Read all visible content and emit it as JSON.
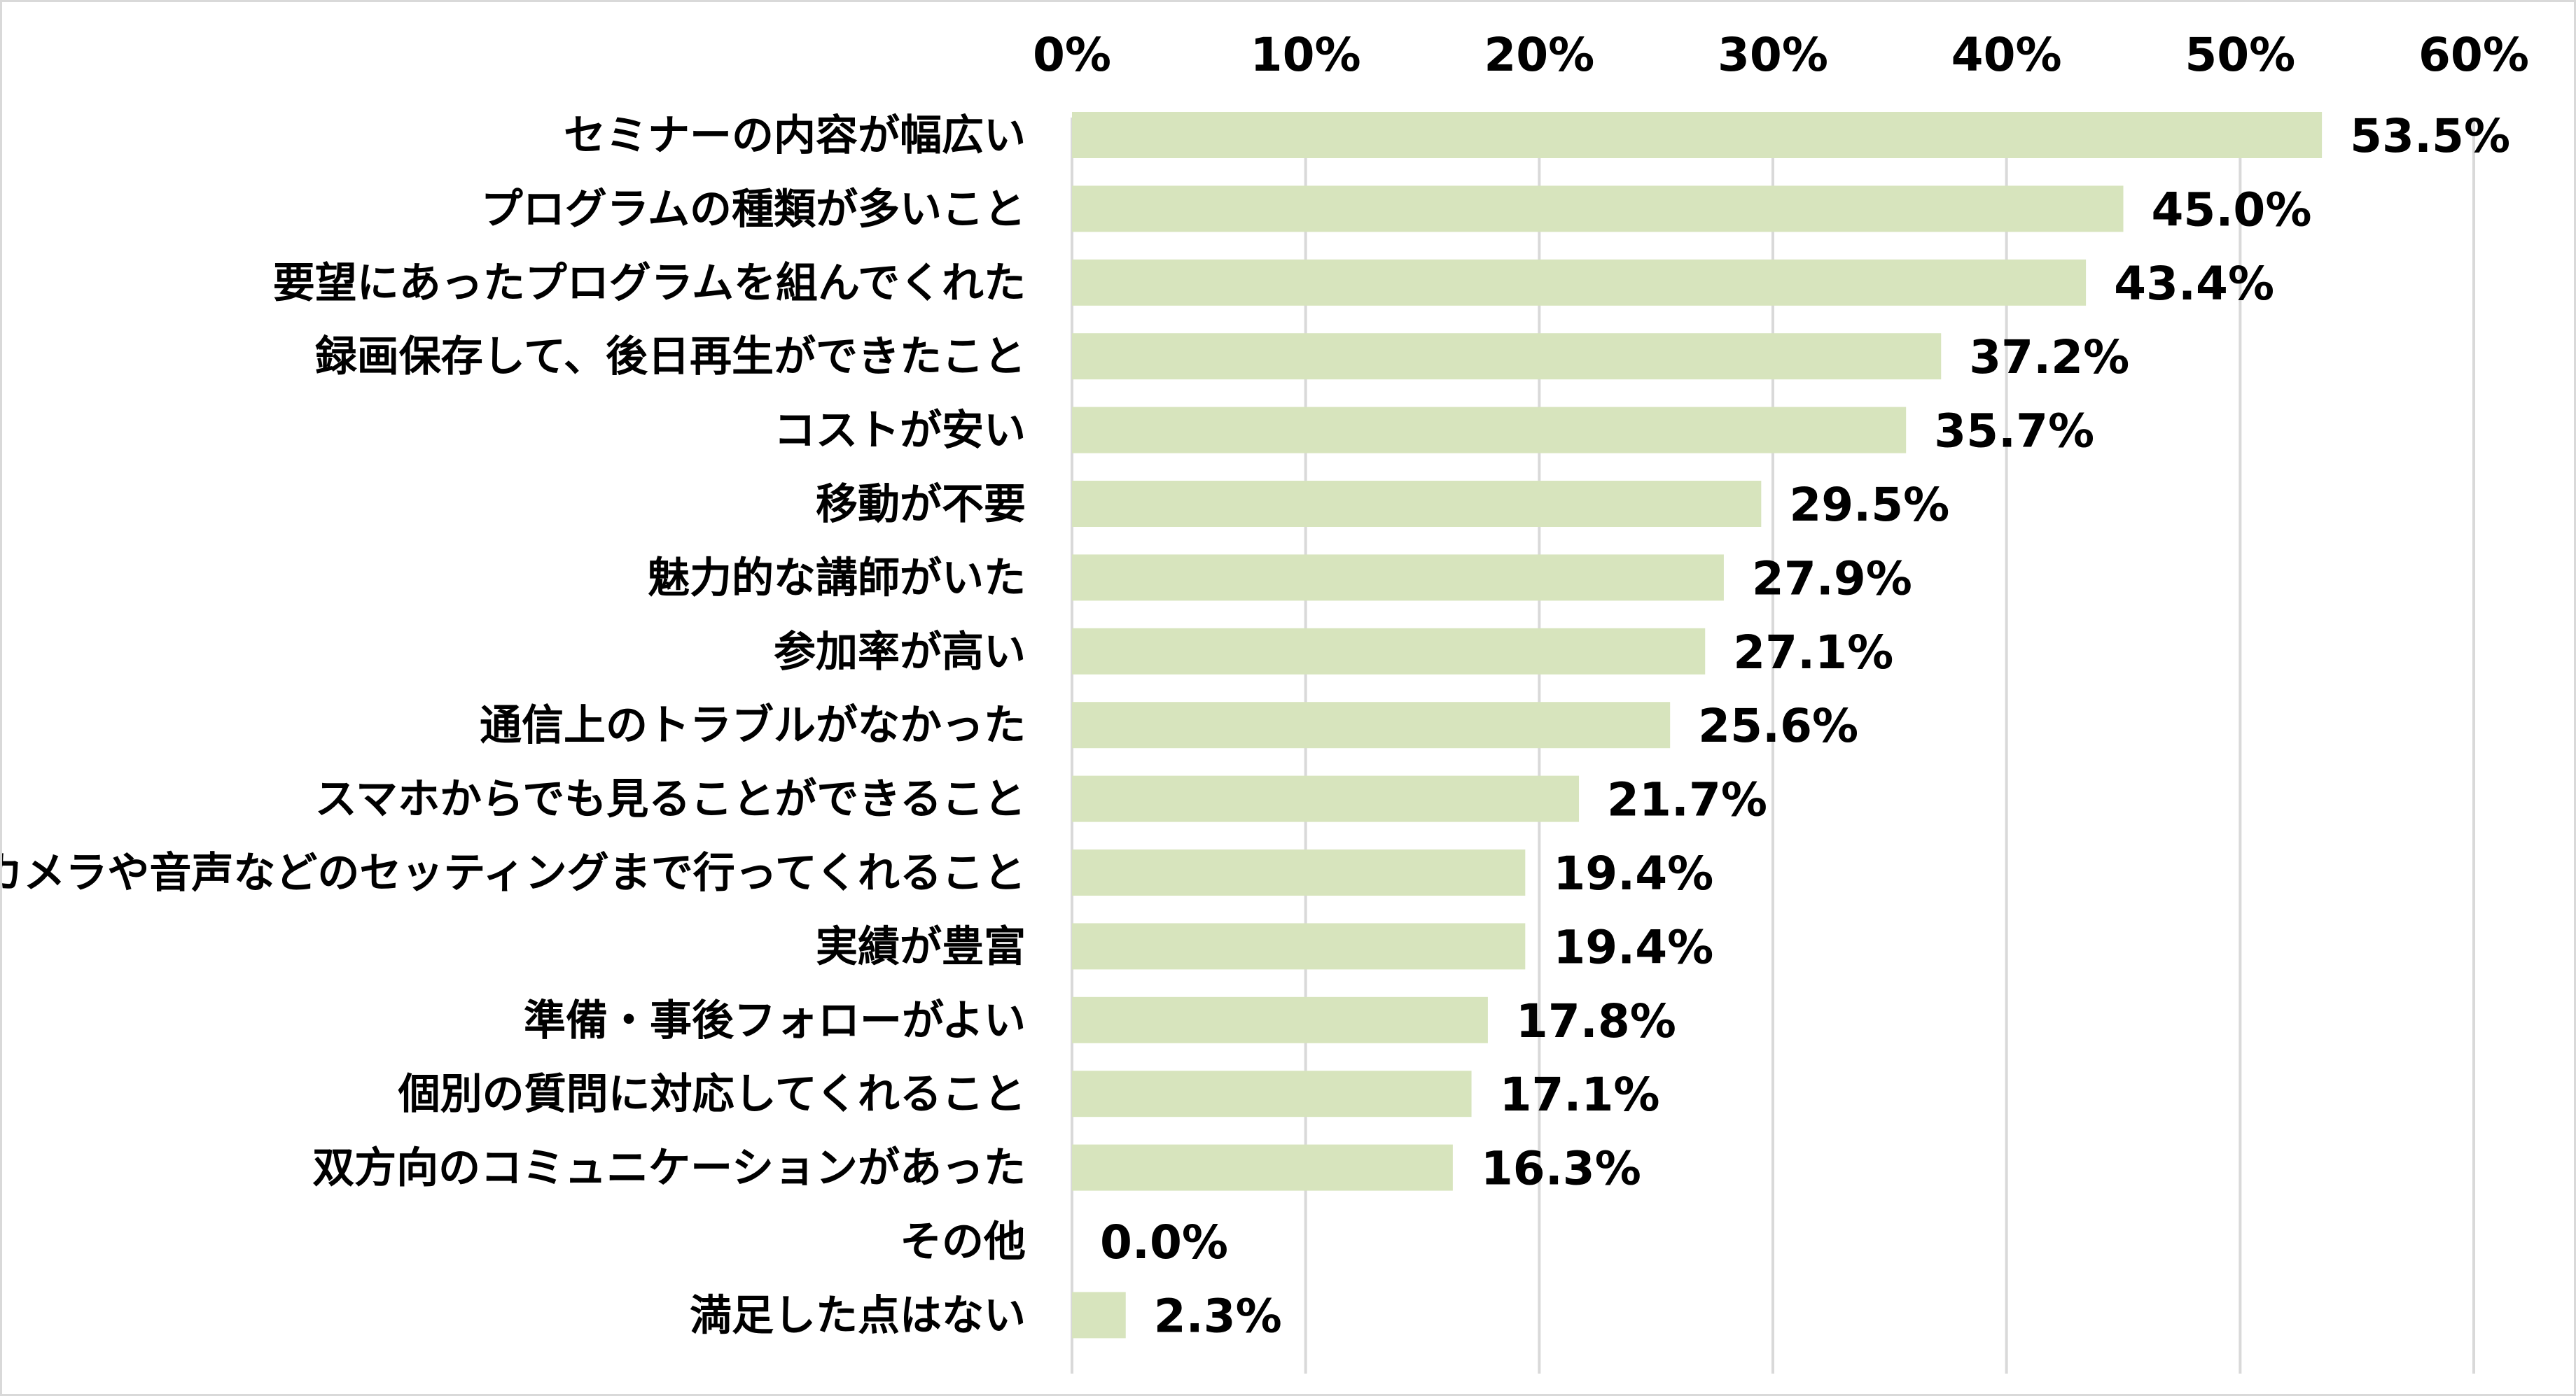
{
  "chart_data": {
    "type": "bar",
    "orientation": "horizontal",
    "title": "",
    "xlabel": "",
    "ylabel": "",
    "xlim": [
      0,
      60
    ],
    "x_ticks": [
      "0%",
      "10%",
      "20%",
      "30%",
      "40%",
      "50%",
      "60%"
    ],
    "x_tick_values": [
      0,
      10,
      20,
      30,
      40,
      50,
      60
    ],
    "x_axis_position": "top",
    "grid": true,
    "legend": "none",
    "bar_color": "#d7e4bd",
    "grid_color": "#d9d9d9",
    "categories": [
      "セミナーの内容が幅広い",
      "プログラムの種類が多いこと",
      "要望にあったプログラムを組んでくれた",
      "録画保存して、後日再生ができたこと",
      "コストが安い",
      "移動が不要",
      "魅力的な講師がいた",
      "参加率が高い",
      "通信上のトラブルがなかった",
      "スマホからでも見ることができること",
      "カメラや音声などのセッティングまで行ってくれること",
      "実績が豊富",
      "準備・事後フォローがよい",
      "個別の質問に対応してくれること",
      "双方向のコミュニケーションがあった",
      "その他",
      "満足した点はない"
    ],
    "values": [
      53.5,
      45.0,
      43.4,
      37.2,
      35.7,
      29.5,
      27.9,
      27.1,
      25.6,
      21.7,
      19.4,
      19.4,
      17.8,
      17.1,
      16.3,
      0.0,
      2.3
    ],
    "value_labels": [
      "53.5%",
      "45.0%",
      "43.4%",
      "37.2%",
      "35.7%",
      "29.5%",
      "27.9%",
      "27.1%",
      "25.6%",
      "21.7%",
      "19.4%",
      "19.4%",
      "17.8%",
      "17.1%",
      "16.3%",
      "0.0%",
      "2.3%"
    ]
  }
}
